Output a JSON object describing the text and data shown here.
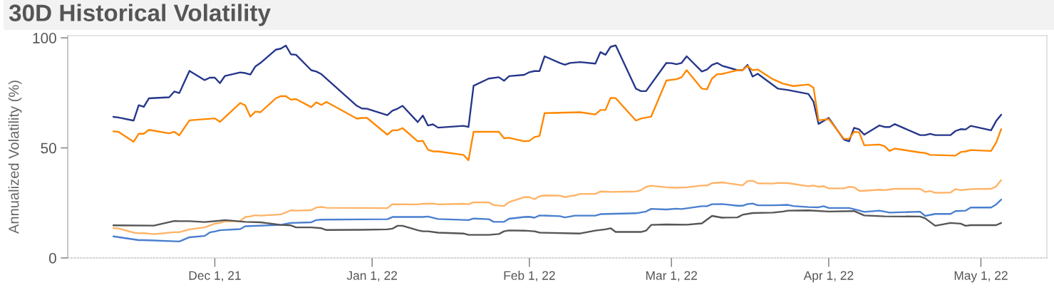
{
  "chart_data": {
    "type": "line",
    "title": "30D Historical Volatility",
    "ylabel": "Annualized Volatility (%)",
    "xlim": [
      "2021-11-02",
      "2022-05-14"
    ],
    "xticks": [
      {
        "value": "2021-12-01",
        "label": "Dec 1, 21"
      },
      {
        "value": "2022-01-01",
        "label": "Jan 1, 22"
      },
      {
        "value": "2022-02-01",
        "label": "Feb 1, 22"
      },
      {
        "value": "2022-03-01",
        "label": "Mar 1, 22"
      },
      {
        "value": "2022-04-01",
        "label": "Apr 1, 22"
      },
      {
        "value": "2022-05-01",
        "label": "May 1, 22"
      }
    ],
    "ylim": [
      0,
      101
    ],
    "yticks": [
      0,
      50,
      100
    ],
    "grid": false,
    "series": [
      {
        "color": "#25368a",
        "x": [
          "2021-11-11",
          "2021-11-12",
          "2021-11-15",
          "2021-11-16",
          "2021-11-17",
          "2021-11-18",
          "2021-11-22",
          "2021-11-23",
          "2021-11-24",
          "2021-11-26",
          "2021-11-29",
          "2021-11-30",
          "2021-12-01",
          "2021-12-02",
          "2021-12-03",
          "2021-12-06",
          "2021-12-07",
          "2021-12-08",
          "2021-12-09",
          "2021-12-10",
          "2021-12-13",
          "2021-12-14",
          "2021-12-15",
          "2021-12-16",
          "2021-12-17",
          "2021-12-20",
          "2021-12-21",
          "2021-12-22",
          "2021-12-29",
          "2021-12-30",
          "2021-12-31",
          "2022-01-04",
          "2022-01-05",
          "2022-01-06",
          "2022-01-07",
          "2022-01-10",
          "2022-01-11",
          "2022-01-12",
          "2022-01-13",
          "2022-01-14",
          "2022-01-19",
          "2022-01-20",
          "2022-01-21",
          "2022-01-24",
          "2022-01-26",
          "2022-01-27",
          "2022-01-28",
          "2022-01-31",
          "2022-02-01",
          "2022-02-02",
          "2022-02-03",
          "2022-02-04",
          "2022-02-07",
          "2022-02-08",
          "2022-02-09",
          "2022-02-11",
          "2022-02-14",
          "2022-02-15",
          "2022-02-16",
          "2022-02-17",
          "2022-02-18",
          "2022-02-22",
          "2022-02-23",
          "2022-02-24",
          "2022-02-28",
          "2022-03-01",
          "2022-03-02",
          "2022-03-03",
          "2022-03-04",
          "2022-03-07",
          "2022-03-08",
          "2022-03-09",
          "2022-03-10",
          "2022-03-11",
          "2022-03-14",
          "2022-03-15",
          "2022-03-16",
          "2022-03-17",
          "2022-03-18",
          "2022-03-22",
          "2022-03-24",
          "2022-03-28",
          "2022-03-29",
          "2022-03-30",
          "2022-04-01",
          "2022-04-04",
          "2022-04-05",
          "2022-04-06",
          "2022-04-07",
          "2022-04-08",
          "2022-04-11",
          "2022-04-12",
          "2022-04-13",
          "2022-04-14",
          "2022-04-19",
          "2022-04-20",
          "2022-04-21",
          "2022-04-22",
          "2022-04-25",
          "2022-04-26",
          "2022-04-27",
          "2022-04-28",
          "2022-04-29",
          "2022-05-03",
          "2022-05-04",
          "2022-05-05"
        ],
        "values": [
          64.1,
          63.8,
          62.4,
          69.4,
          68.7,
          72.5,
          73.0,
          75.6,
          74.9,
          85.0,
          80.8,
          81.9,
          81.9,
          79.4,
          82.7,
          84.3,
          84.0,
          83.3,
          87.0,
          88.6,
          94.6,
          95.1,
          96.5,
          92.5,
          92.3,
          85.3,
          84.7,
          83.5,
          69.1,
          67.9,
          67.8,
          64.9,
          66.9,
          67.8,
          69.1,
          61.7,
          64.7,
          60.2,
          60.7,
          59.2,
          60.0,
          59.5,
          78.2,
          81.5,
          82.1,
          80.5,
          82.6,
          83.2,
          84.4,
          84.9,
          84.9,
          91.6,
          88.6,
          87.8,
          88.6,
          89.0,
          88.3,
          93.5,
          92.3,
          95.9,
          96.6,
          76.9,
          75.8,
          75.8,
          88.6,
          88.5,
          88.0,
          88.6,
          91.6,
          84.7,
          85.6,
          87.7,
          88.6,
          87.3,
          85.3,
          85.3,
          87.7,
          82.4,
          83.7,
          76.9,
          76.3,
          74.5,
          71.0,
          60.9,
          63.6,
          53.8,
          53.0,
          59.1,
          58.4,
          56.0,
          60.2,
          59.5,
          59.5,
          60.8,
          55.8,
          55.8,
          56.4,
          55.8,
          55.8,
          57.7,
          58.5,
          58.4,
          60.0,
          58.0,
          62.2,
          65.1
        ]
      },
      {
        "color": "#ff8800",
        "x": [
          "2021-11-11",
          "2021-11-12",
          "2021-11-15",
          "2021-11-16",
          "2021-11-17",
          "2021-11-18",
          "2021-11-22",
          "2021-11-23",
          "2021-11-24",
          "2021-11-26",
          "2021-12-01",
          "2021-12-02",
          "2021-12-06",
          "2021-12-07",
          "2021-12-08",
          "2021-12-09",
          "2021-12-10",
          "2021-12-13",
          "2021-12-14",
          "2021-12-15",
          "2021-12-16",
          "2021-12-17",
          "2021-12-20",
          "2021-12-21",
          "2021-12-22",
          "2021-12-23",
          "2021-12-29",
          "2021-12-30",
          "2021-12-31",
          "2022-01-04",
          "2022-01-05",
          "2022-01-06",
          "2022-01-07",
          "2022-01-10",
          "2022-01-11",
          "2022-01-12",
          "2022-01-13",
          "2022-01-14",
          "2022-01-19",
          "2022-01-20",
          "2022-01-21",
          "2022-01-26",
          "2022-01-27",
          "2022-01-28",
          "2022-01-31",
          "2022-02-01",
          "2022-02-02",
          "2022-02-03",
          "2022-02-04",
          "2022-02-11",
          "2022-02-14",
          "2022-02-15",
          "2022-02-16",
          "2022-02-17",
          "2022-02-18",
          "2022-02-22",
          "2022-02-23",
          "2022-02-25",
          "2022-02-28",
          "2022-03-02",
          "2022-03-03",
          "2022-03-04",
          "2022-03-07",
          "2022-03-08",
          "2022-03-09",
          "2022-03-10",
          "2022-03-11",
          "2022-03-14",
          "2022-03-15",
          "2022-03-16",
          "2022-03-17",
          "2022-03-18",
          "2022-03-21",
          "2022-03-23",
          "2022-03-25",
          "2022-03-28",
          "2022-03-29",
          "2022-03-30",
          "2022-04-01",
          "2022-04-04",
          "2022-04-05",
          "2022-04-06",
          "2022-04-07",
          "2022-04-08",
          "2022-04-11",
          "2022-04-12",
          "2022-04-13",
          "2022-04-14",
          "2022-04-19",
          "2022-04-20",
          "2022-04-21",
          "2022-04-26",
          "2022-04-27",
          "2022-04-28",
          "2022-04-29",
          "2022-05-03",
          "2022-05-04",
          "2022-05-05"
        ],
        "values": [
          57.5,
          57.3,
          52.8,
          56.4,
          56.4,
          58.2,
          56.6,
          57.3,
          55.7,
          62.5,
          63.4,
          61.8,
          70.4,
          69.3,
          64.2,
          66.5,
          66.2,
          72.5,
          73.5,
          73.5,
          71.9,
          72.2,
          68.5,
          70.7,
          69.5,
          70.9,
          63.3,
          63.6,
          63.6,
          56.0,
          58.0,
          58.0,
          59.0,
          53.0,
          53.2,
          49.2,
          48.4,
          48.4,
          46.8,
          44.4,
          57.3,
          57.3,
          54.4,
          54.6,
          53.0,
          53.2,
          54.9,
          55.4,
          65.8,
          66.2,
          65.2,
          67.2,
          67.2,
          72.7,
          72.6,
          62.4,
          63.3,
          64.2,
          80.6,
          81.2,
          82.1,
          85.3,
          76.9,
          76.6,
          81.5,
          83.5,
          83.6,
          85.3,
          85.3,
          87.2,
          85.3,
          85.6,
          81.2,
          79.2,
          78.1,
          78.8,
          77.4,
          62.5,
          63.1,
          54.1,
          54.1,
          57.3,
          57.1,
          51.2,
          51.5,
          50.8,
          48.6,
          49.7,
          47.9,
          47.7,
          46.8,
          46.5,
          48.1,
          48.4,
          49.0,
          48.6,
          52.4,
          58.5
        ]
      },
      {
        "color": "#ffb366",
        "x": [
          "2021-11-11",
          "2021-11-12",
          "2021-11-15",
          "2021-11-16",
          "2021-11-17",
          "2021-11-19",
          "2021-11-23",
          "2021-11-24",
          "2021-11-26",
          "2021-11-29",
          "2021-12-01",
          "2021-12-02",
          "2021-12-03",
          "2021-12-06",
          "2021-12-07",
          "2021-12-08",
          "2021-12-09",
          "2021-12-10",
          "2021-12-14",
          "2021-12-16",
          "2021-12-17",
          "2021-12-20",
          "2021-12-21",
          "2021-12-22",
          "2021-12-23",
          "2022-01-04",
          "2022-01-05",
          "2022-01-10",
          "2022-01-11",
          "2022-01-13",
          "2022-01-14",
          "2022-01-19",
          "2022-01-20",
          "2022-01-21",
          "2022-01-24",
          "2022-01-25",
          "2022-01-27",
          "2022-01-28",
          "2022-01-31",
          "2022-02-01",
          "2022-02-02",
          "2022-02-03",
          "2022-02-04",
          "2022-02-07",
          "2022-02-08",
          "2022-02-09",
          "2022-02-10",
          "2022-02-11",
          "2022-02-14",
          "2022-02-15",
          "2022-02-16",
          "2022-02-17",
          "2022-02-22",
          "2022-02-23",
          "2022-02-24",
          "2022-02-25",
          "2022-02-28",
          "2022-03-02",
          "2022-03-04",
          "2022-03-07",
          "2022-03-08",
          "2022-03-09",
          "2022-03-11",
          "2022-03-15",
          "2022-03-16",
          "2022-03-17",
          "2022-03-18",
          "2022-03-21",
          "2022-03-22",
          "2022-03-24",
          "2022-03-28",
          "2022-03-29",
          "2022-03-30",
          "2022-03-31",
          "2022-04-01",
          "2022-04-04",
          "2022-04-05",
          "2022-04-06",
          "2022-04-07",
          "2022-04-08",
          "2022-04-11",
          "2022-04-12",
          "2022-04-14",
          "2022-04-19",
          "2022-04-20",
          "2022-04-21",
          "2022-04-22",
          "2022-04-25",
          "2022-04-26",
          "2022-04-27",
          "2022-04-29",
          "2022-05-03",
          "2022-05-04",
          "2022-05-05"
        ],
        "values": [
          13.5,
          13.4,
          11.5,
          11.2,
          11.3,
          10.8,
          11.7,
          11.7,
          13.0,
          13.9,
          15.6,
          15.9,
          16.6,
          16.8,
          18.6,
          18.9,
          19.4,
          19.2,
          19.8,
          21.6,
          21.5,
          21.7,
          22.9,
          23.2,
          22.8,
          22.6,
          24.4,
          24.3,
          24.6,
          24.7,
          24.3,
          24.6,
          24.4,
          25.3,
          25.2,
          24.0,
          23.6,
          25.4,
          27.6,
          27.6,
          26.7,
          28.0,
          28.4,
          28.3,
          27.6,
          28.1,
          28.4,
          29.1,
          29.1,
          30.2,
          30.1,
          30.0,
          30.2,
          30.8,
          32.3,
          32.8,
          32.1,
          31.9,
          32.1,
          32.9,
          32.9,
          34.0,
          34.3,
          33.0,
          34.9,
          35.1,
          33.9,
          33.8,
          34.1,
          34.0,
          32.6,
          32.9,
          32.3,
          32.6,
          31.6,
          31.6,
          32.3,
          32.1,
          30.5,
          30.5,
          31.0,
          30.8,
          31.4,
          31.4,
          30.0,
          30.4,
          29.6,
          29.7,
          31.3,
          30.8,
          31.3,
          31.4,
          32.5,
          35.4
        ]
      },
      {
        "color": "#4a7fcf",
        "x": [
          "2021-11-11",
          "2021-11-16",
          "2021-11-17",
          "2021-11-18",
          "2021-11-24",
          "2021-11-26",
          "2021-11-29",
          "2021-11-30",
          "2021-12-01",
          "2021-12-02",
          "2021-12-06",
          "2021-12-07",
          "2021-12-14",
          "2021-12-15",
          "2021-12-16",
          "2021-12-20",
          "2021-12-21",
          "2021-12-22",
          "2022-01-04",
          "2022-01-05",
          "2022-01-11",
          "2022-01-12",
          "2022-01-14",
          "2022-01-20",
          "2022-01-21",
          "2022-01-24",
          "2022-01-25",
          "2022-01-27",
          "2022-01-28",
          "2022-01-31",
          "2022-02-01",
          "2022-02-02",
          "2022-02-03",
          "2022-02-07",
          "2022-02-08",
          "2022-02-10",
          "2022-02-14",
          "2022-02-15",
          "2022-02-22",
          "2022-02-24",
          "2022-02-25",
          "2022-02-28",
          "2022-03-02",
          "2022-03-03",
          "2022-03-07",
          "2022-03-08",
          "2022-03-09",
          "2022-03-11",
          "2022-03-14",
          "2022-03-15",
          "2022-03-16",
          "2022-03-17",
          "2022-03-18",
          "2022-03-21",
          "2022-03-24",
          "2022-03-25",
          "2022-03-28",
          "2022-03-30",
          "2022-03-31",
          "2022-04-01",
          "2022-04-05",
          "2022-04-07",
          "2022-04-08",
          "2022-04-11",
          "2022-04-13",
          "2022-04-19",
          "2022-04-20",
          "2022-04-22",
          "2022-04-25",
          "2022-04-26",
          "2022-04-28",
          "2022-04-29",
          "2022-05-03",
          "2022-05-04",
          "2022-05-05"
        ],
        "values": [
          9.8,
          8.1,
          8.1,
          8.0,
          7.5,
          9.4,
          10.0,
          11.6,
          12.0,
          12.6,
          13.1,
          14.4,
          15.0,
          15.5,
          15.9,
          16.2,
          17.2,
          17.4,
          17.6,
          18.6,
          18.6,
          18.8,
          17.7,
          17.2,
          17.9,
          17.6,
          16.4,
          16.4,
          17.8,
          18.6,
          18.7,
          18.3,
          19.3,
          19.0,
          18.4,
          19.2,
          19.2,
          19.9,
          20.3,
          21.1,
          22.3,
          22.0,
          22.4,
          22.2,
          23.5,
          23.5,
          24.4,
          24.5,
          23.7,
          23.7,
          24.5,
          24.7,
          23.9,
          23.9,
          24.1,
          23.6,
          23.1,
          23.0,
          23.5,
          22.7,
          22.7,
          21.6,
          20.9,
          21.5,
          20.6,
          21.0,
          19.1,
          20.0,
          20.0,
          21.3,
          21.5,
          22.9,
          22.9,
          24.3,
          26.5
        ]
      },
      {
        "color": "#555555",
        "x": [
          "2021-11-11",
          "2021-11-19",
          "2021-11-23",
          "2021-11-24",
          "2021-11-26",
          "2021-11-29",
          "2021-12-02",
          "2021-12-03",
          "2021-12-07",
          "2021-12-10",
          "2021-12-14",
          "2021-12-16",
          "2021-12-17",
          "2021-12-20",
          "2021-12-22",
          "2021-12-23",
          "2021-12-30",
          "2022-01-04",
          "2022-01-05",
          "2022-01-06",
          "2022-01-07",
          "2022-01-10",
          "2022-01-11",
          "2022-01-12",
          "2022-01-14",
          "2022-01-19",
          "2022-01-20",
          "2022-01-24",
          "2022-01-26",
          "2022-01-27",
          "2022-01-28",
          "2022-01-31",
          "2022-02-02",
          "2022-02-03",
          "2022-02-11",
          "2022-02-14",
          "2022-02-16",
          "2022-02-17",
          "2022-02-18",
          "2022-02-23",
          "2022-02-24",
          "2022-02-25",
          "2022-02-28",
          "2022-03-04",
          "2022-03-07",
          "2022-03-09",
          "2022-03-11",
          "2022-03-14",
          "2022-03-15",
          "2022-03-17",
          "2022-03-21",
          "2022-03-23",
          "2022-03-24",
          "2022-03-28",
          "2022-04-01",
          "2022-04-06",
          "2022-04-08",
          "2022-04-12",
          "2022-04-19",
          "2022-04-20",
          "2022-04-22",
          "2022-04-25",
          "2022-04-27",
          "2022-04-28",
          "2022-04-29",
          "2022-05-04",
          "2022-05-05"
        ],
        "values": [
          14.8,
          14.7,
          16.8,
          16.7,
          16.7,
          16.3,
          16.9,
          17.2,
          16.4,
          16.2,
          15.0,
          14.8,
          13.9,
          13.9,
          13.5,
          12.7,
          12.8,
          13.0,
          13.3,
          14.6,
          14.6,
          12.6,
          12.1,
          12.1,
          11.5,
          11.1,
          10.5,
          10.5,
          10.9,
          12.1,
          12.5,
          12.4,
          12.1,
          11.5,
          11.1,
          12.4,
          13.0,
          13.5,
          11.8,
          11.8,
          12.4,
          15.0,
          15.2,
          15.1,
          15.7,
          19.1,
          18.3,
          18.4,
          19.6,
          20.4,
          20.6,
          21.1,
          21.5,
          21.6,
          21.1,
          21.3,
          19.3,
          18.9,
          18.8,
          18.0,
          14.6,
          15.9,
          15.6,
          14.6,
          14.9,
          14.9,
          15.9
        ]
      }
    ]
  }
}
